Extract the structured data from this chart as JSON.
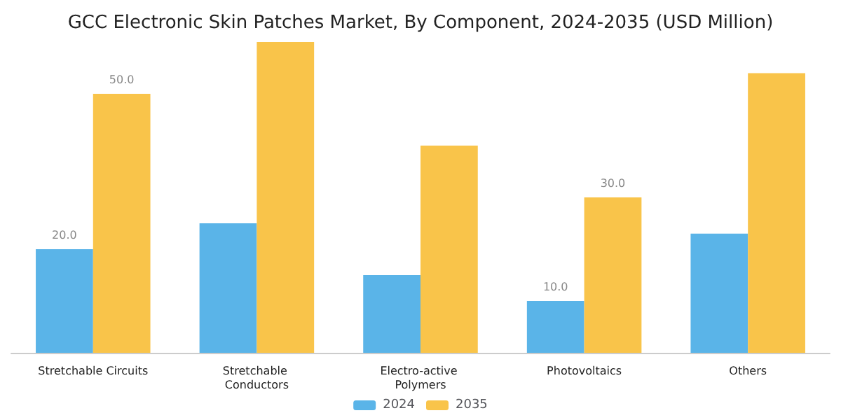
{
  "chart_data": {
    "type": "bar",
    "title": "GCC Electronic Skin Patches Market, By Component, 2024-2035 (USD Million)",
    "categories": [
      "Stretchable Circuits",
      "Stretchable Conductors",
      "Electro-active Polymers",
      "Photovoltaics",
      "Others"
    ],
    "series": [
      {
        "name": "2024",
        "color": "#5ab4e8",
        "values": [
          20,
          25,
          15,
          10,
          23
        ],
        "value_labels": [
          "20.0",
          null,
          null,
          "10.0",
          null
        ]
      },
      {
        "name": "2035",
        "color": "#f9c44a",
        "values": [
          50,
          60,
          40,
          30,
          54
        ],
        "value_labels": [
          "50.0",
          null,
          null,
          "30.0",
          null
        ]
      }
    ],
    "legend": "bottom"
  }
}
